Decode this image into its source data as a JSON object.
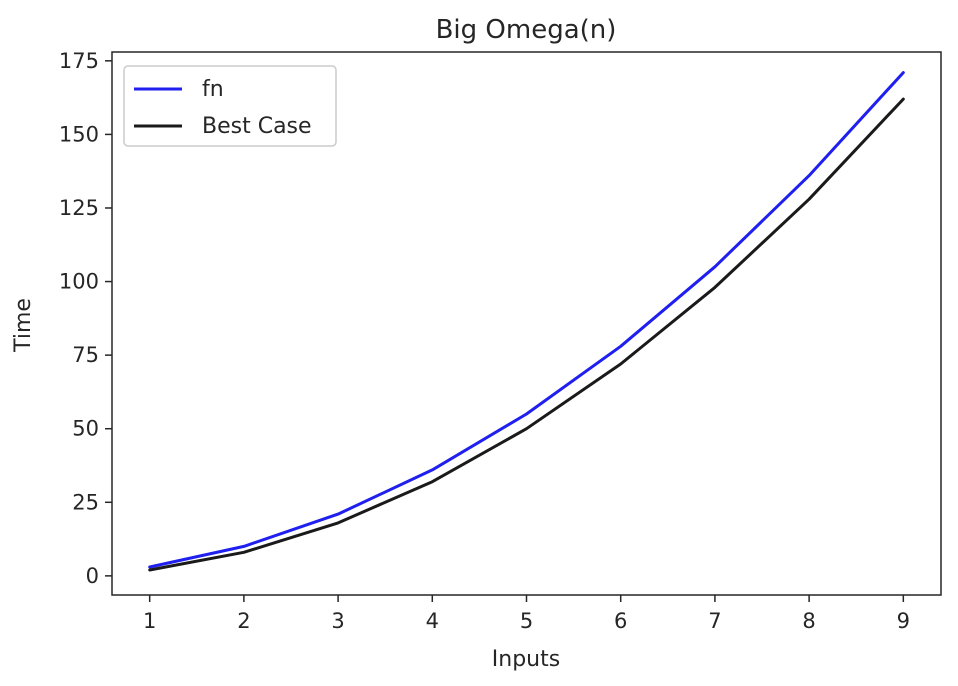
{
  "chart_data": {
    "type": "line",
    "title": "Big Omega(n)",
    "xlabel": "Inputs",
    "ylabel": "Time",
    "x": [
      1,
      2,
      3,
      4,
      5,
      6,
      7,
      8,
      9
    ],
    "xticks": [
      1,
      2,
      3,
      4,
      5,
      6,
      7,
      8,
      9
    ],
    "yticks": [
      0,
      25,
      50,
      75,
      100,
      125,
      150,
      175
    ],
    "xlim": [
      0.6,
      9.4
    ],
    "ylim": [
      -6.5,
      178
    ],
    "grid": false,
    "legend_position": "top-left",
    "series": [
      {
        "name": "fn",
        "color": "#1f1fef",
        "values": [
          3,
          10,
          21,
          36,
          55,
          78,
          105,
          136,
          171
        ]
      },
      {
        "name": "Best Case",
        "color": "#1a1a1a",
        "values": [
          2,
          8,
          18,
          32,
          50,
          72,
          98,
          128,
          162
        ]
      }
    ]
  }
}
